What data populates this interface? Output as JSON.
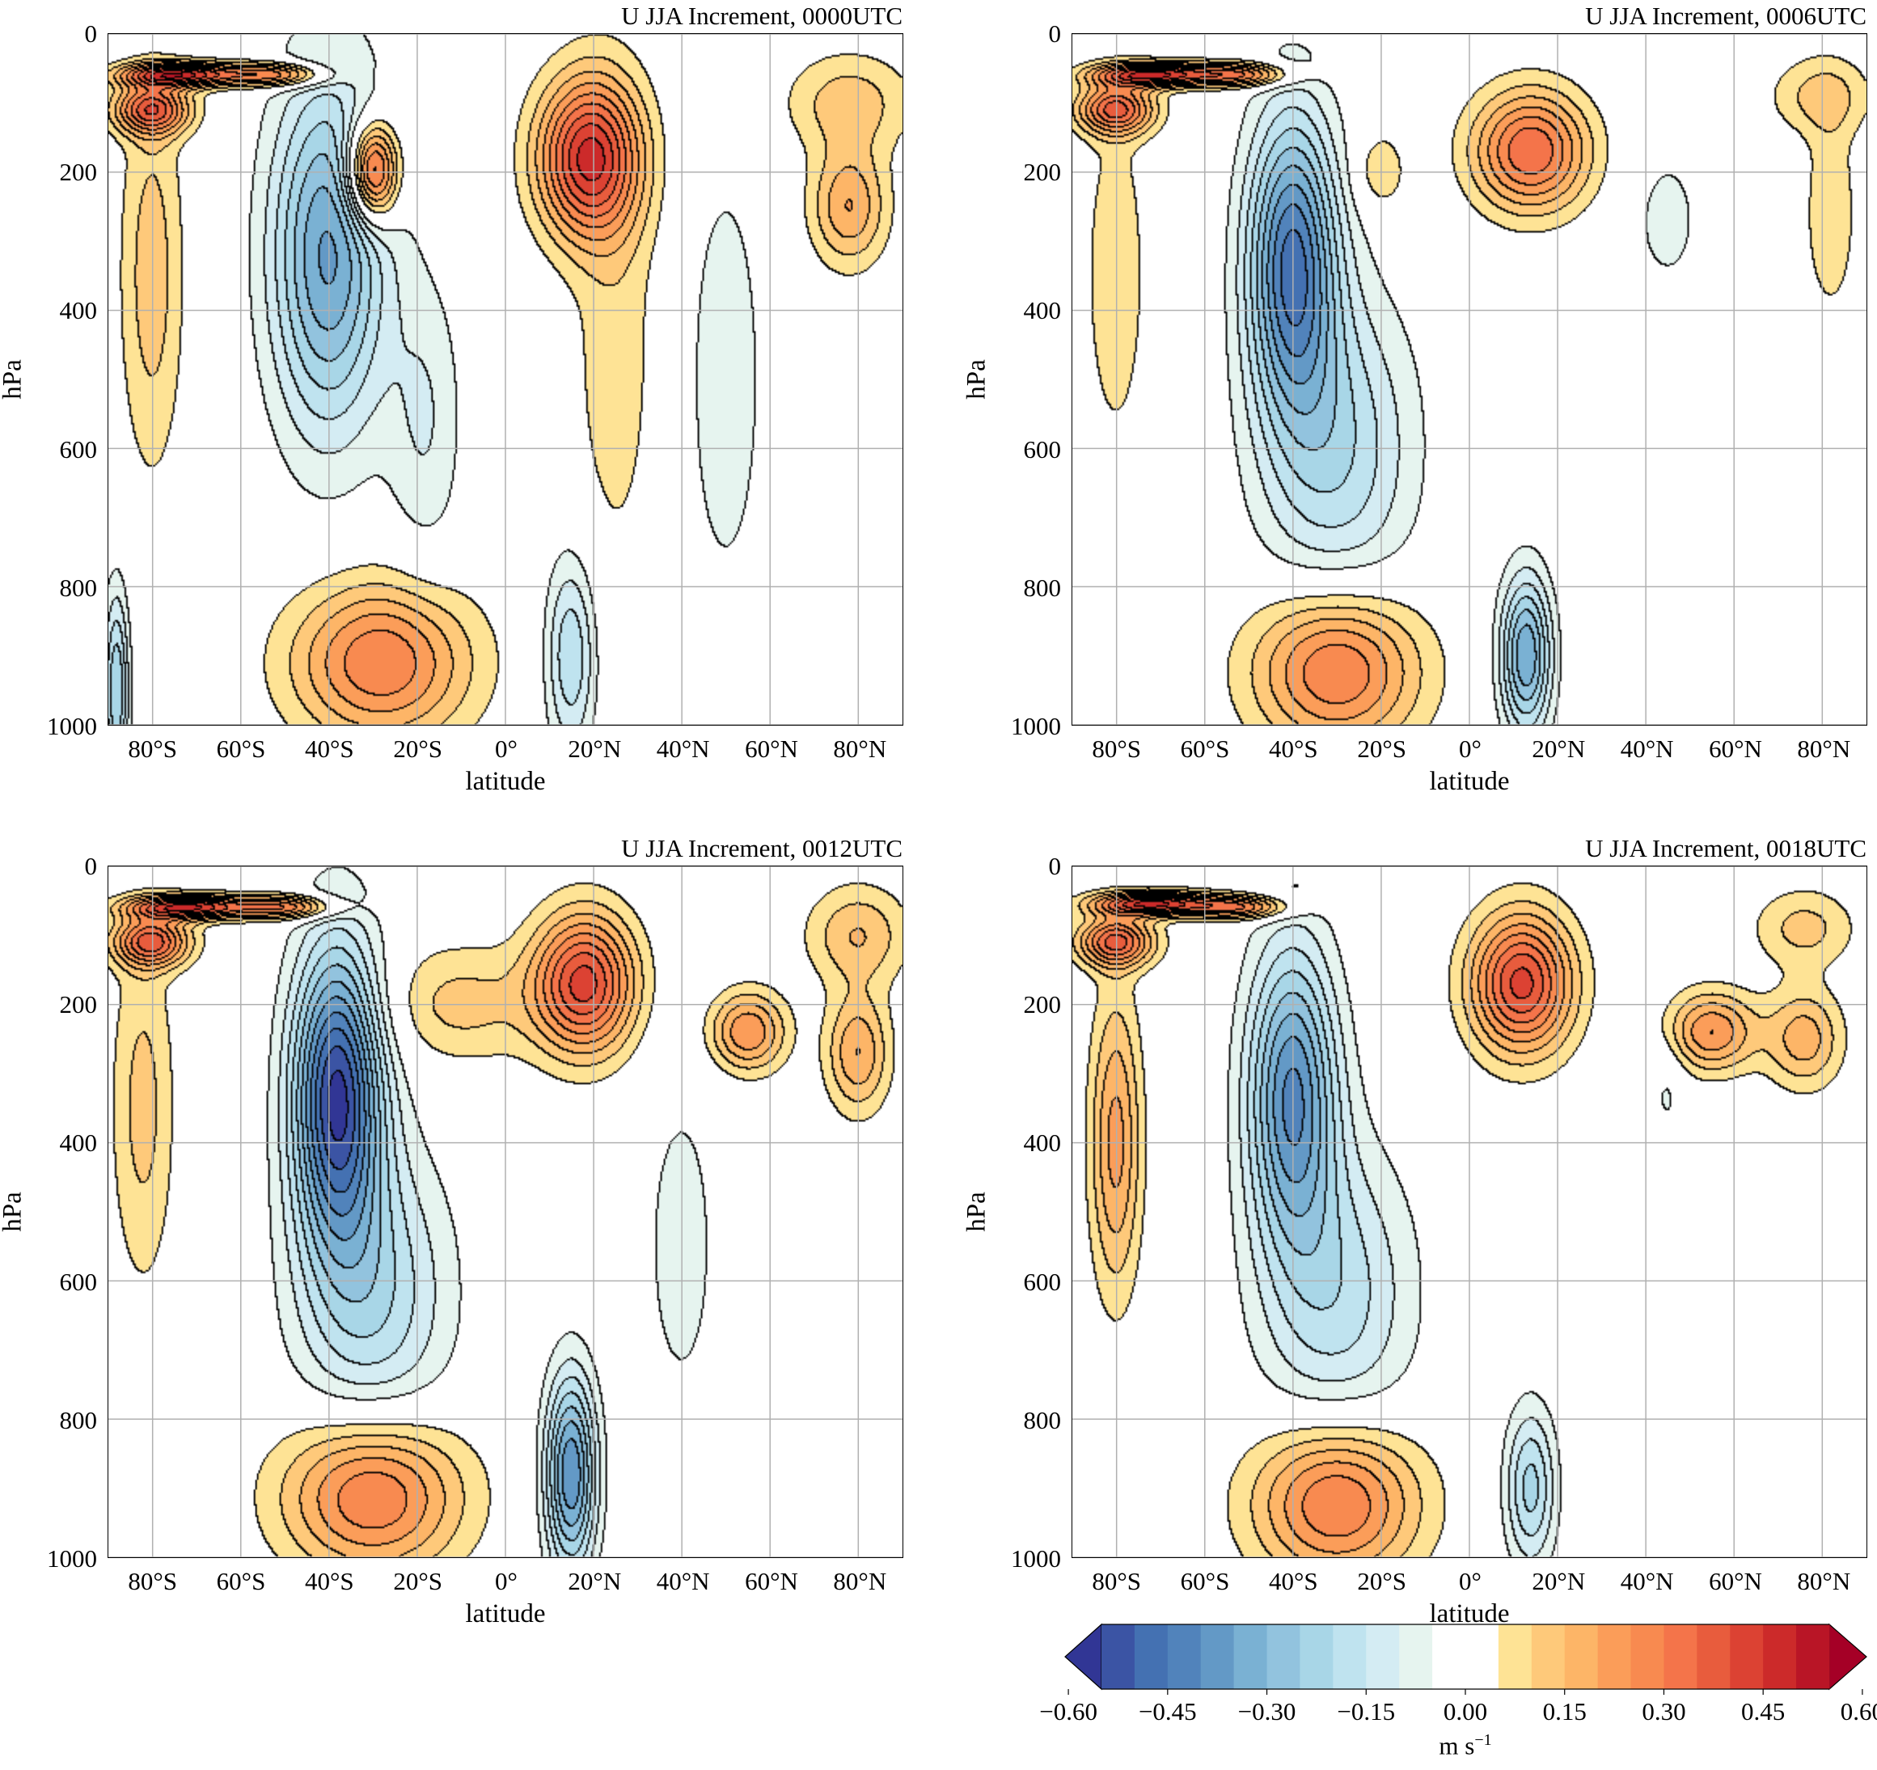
{
  "colorbar": {
    "label": "m s",
    "label_exponent": "−1",
    "levels_min": -0.6,
    "levels_max": 0.6,
    "level_step": 0.05,
    "extend": "both",
    "colormap": "RdYlBu_r",
    "colors": [
      "#313695",
      "#3b54a4",
      "#4471b2",
      "#5183bb",
      "#6399c6",
      "#7ab1d3",
      "#92c3de",
      "#a8d6e7",
      "#bfe3ef",
      "#d4ecf3",
      "#e6f4ef",
      "#ffffff",
      "#ffffff",
      "#fee395",
      "#fec97a",
      "#fdb567",
      "#fb9d59",
      "#f88a50",
      "#f4744a",
      "#e85c3d",
      "#dc4233",
      "#cc2a2a",
      "#b91526",
      "#a50026"
    ],
    "ticks": [
      -0.6,
      -0.45,
      -0.3,
      -0.15,
      0.0,
      0.15,
      0.3,
      0.45,
      0.6
    ],
    "tick_labels": [
      "−0.60",
      "−0.45",
      "−0.30",
      "−0.15",
      "0.00",
      "0.15",
      "0.30",
      "0.45",
      "0.60"
    ]
  },
  "chart_data": [
    {
      "type": "contour",
      "title": "U JJA Increment, 0000UTC",
      "xlabel": "latitude",
      "ylabel": "hPa",
      "xlim": [
        -90,
        90
      ],
      "ylim": [
        1000,
        0
      ],
      "y_inverted": true,
      "grid": true,
      "xticks": [
        -80,
        -60,
        -40,
        -20,
        0,
        20,
        40,
        60,
        80
      ],
      "xtick_labels": [
        "80°S",
        "60°S",
        "40°S",
        "20°S",
        "0°",
        "20°N",
        "40°N",
        "60°N",
        "80°N"
      ],
      "yticks": [
        0,
        200,
        400,
        600,
        800,
        1000
      ],
      "ytick_labels": [
        "0",
        "200",
        "400",
        "600",
        "800",
        "1000"
      ],
      "field_extrema": [
        {
          "lat": -80,
          "p": 110,
          "u": 0.35,
          "dlat": 6,
          "dp": 25
        },
        {
          "lat": -74,
          "p": 60,
          "u": 0.45,
          "dlat": 9,
          "dp": 12
        },
        {
          "lat": -52,
          "p": 60,
          "u": 0.3,
          "dlat": 8,
          "dp": 12
        },
        {
          "lat": -80,
          "p": 350,
          "u": 0.13,
          "dlat": 5,
          "dp": 200
        },
        {
          "lat": -40,
          "p": 320,
          "u": -0.36,
          "dlat": 9,
          "dp": 180
        },
        {
          "lat": -30,
          "p": 200,
          "u": 0.45,
          "dlat": 4,
          "dp": 50
        },
        {
          "lat": -18,
          "p": 560,
          "u": -0.1,
          "dlat": 6,
          "dp": 150
        },
        {
          "lat": -28,
          "p": 910,
          "u": 0.3,
          "dlat": 14,
          "dp": 80
        },
        {
          "lat": 15,
          "p": 900,
          "u": -0.2,
          "dlat": 4,
          "dp": 100
        },
        {
          "lat": 19,
          "p": 180,
          "u": 0.45,
          "dlat": 8,
          "dp": 80
        },
        {
          "lat": 25,
          "p": 450,
          "u": 0.08,
          "dlat": 7,
          "dp": 250
        },
        {
          "lat": 50,
          "p": 500,
          "u": -0.08,
          "dlat": 7,
          "dp": 250
        },
        {
          "lat": 78,
          "p": 250,
          "u": 0.2,
          "dlat": 6,
          "dp": 60
        },
        {
          "lat": 78,
          "p": 100,
          "u": 0.13,
          "dlat": 10,
          "dp": 50
        },
        {
          "lat": -88,
          "p": 950,
          "u": -0.25,
          "dlat": 2,
          "dp": 100
        }
      ],
      "contour_labels": [
        "0.05",
        "-0.05",
        "0.05",
        "-0.05"
      ]
    },
    {
      "type": "contour",
      "title": "U JJA Increment, 0006UTC",
      "xlabel": "latitude",
      "ylabel": "hPa",
      "xlim": [
        -90,
        90
      ],
      "ylim": [
        1000,
        0
      ],
      "y_inverted": true,
      "grid": true,
      "xticks": [
        -80,
        -60,
        -40,
        -20,
        0,
        20,
        40,
        60,
        80
      ],
      "xtick_labels": [
        "80°S",
        "60°S",
        "40°S",
        "20°S",
        "0°",
        "20°N",
        "40°N",
        "60°N",
        "80°N"
      ],
      "yticks": [
        0,
        200,
        400,
        600,
        800,
        1000
      ],
      "ytick_labels": [
        "0",
        "200",
        "400",
        "600",
        "800",
        "1000"
      ],
      "field_extrema": [
        {
          "lat": -80,
          "p": 110,
          "u": 0.35,
          "dlat": 6,
          "dp": 25
        },
        {
          "lat": -72,
          "p": 60,
          "u": 0.45,
          "dlat": 9,
          "dp": 12
        },
        {
          "lat": -52,
          "p": 60,
          "u": 0.3,
          "dlat": 8,
          "dp": 12
        },
        {
          "lat": -80,
          "p": 350,
          "u": 0.09,
          "dlat": 5,
          "dp": 180
        },
        {
          "lat": -40,
          "p": 330,
          "u": -0.45,
          "dlat": 7,
          "dp": 150
        },
        {
          "lat": -30,
          "p": 600,
          "u": -0.2,
          "dlat": 12,
          "dp": 160
        },
        {
          "lat": -30,
          "p": 920,
          "u": 0.32,
          "dlat": 13,
          "dp": 80
        },
        {
          "lat": 13,
          "p": 900,
          "u": -0.35,
          "dlat": 4,
          "dp": 80
        },
        {
          "lat": 14,
          "p": 170,
          "u": 0.35,
          "dlat": 9,
          "dp": 60
        },
        {
          "lat": -20,
          "p": 200,
          "u": 0.1,
          "dlat": 4,
          "dp": 40
        },
        {
          "lat": 80,
          "p": 90,
          "u": 0.12,
          "dlat": 8,
          "dp": 40
        },
        {
          "lat": 82,
          "p": 260,
          "u": 0.1,
          "dlat": 4,
          "dp": 100
        },
        {
          "lat": 45,
          "p": 270,
          "u": -0.07,
          "dlat": 6,
          "dp": 80
        }
      ],
      "contour_labels": [
        "0.05",
        "-0.05",
        "0.05"
      ]
    },
    {
      "type": "contour",
      "title": "U JJA Increment, 0012UTC",
      "xlabel": "latitude",
      "ylabel": "hPa",
      "xlim": [
        -90,
        90
      ],
      "ylim": [
        1000,
        0
      ],
      "y_inverted": true,
      "grid": true,
      "xticks": [
        -80,
        -60,
        -40,
        -20,
        0,
        20,
        40,
        60,
        80
      ],
      "xtick_labels": [
        "80°S",
        "60°S",
        "40°S",
        "20°S",
        "0°",
        "20°N",
        "40°N",
        "60°N",
        "80°N"
      ],
      "yticks": [
        0,
        200,
        400,
        600,
        800,
        1000
      ],
      "ytick_labels": [
        "0",
        "200",
        "400",
        "600",
        "800",
        "1000"
      ],
      "field_extrema": [
        {
          "lat": -80,
          "p": 110,
          "u": 0.35,
          "dlat": 6,
          "dp": 25
        },
        {
          "lat": -72,
          "p": 60,
          "u": 0.45,
          "dlat": 9,
          "dp": 12
        },
        {
          "lat": -50,
          "p": 60,
          "u": 0.3,
          "dlat": 8,
          "dp": 12
        },
        {
          "lat": -82,
          "p": 350,
          "u": 0.12,
          "dlat": 5,
          "dp": 180
        },
        {
          "lat": -38,
          "p": 330,
          "u": -0.55,
          "dlat": 7,
          "dp": 150
        },
        {
          "lat": -30,
          "p": 620,
          "u": -0.2,
          "dlat": 12,
          "dp": 150
        },
        {
          "lat": -30,
          "p": 910,
          "u": 0.32,
          "dlat": 14,
          "dp": 80
        },
        {
          "lat": 15,
          "p": 880,
          "u": -0.4,
          "dlat": 4,
          "dp": 100
        },
        {
          "lat": 18,
          "p": 170,
          "u": 0.42,
          "dlat": 8,
          "dp": 70
        },
        {
          "lat": -10,
          "p": 200,
          "u": 0.12,
          "dlat": 12,
          "dp": 60
        },
        {
          "lat": 55,
          "p": 240,
          "u": 0.25,
          "dlat": 6,
          "dp": 40
        },
        {
          "lat": 80,
          "p": 270,
          "u": 0.2,
          "dlat": 5,
          "dp": 60
        },
        {
          "lat": 80,
          "p": 100,
          "u": 0.15,
          "dlat": 8,
          "dp": 50
        },
        {
          "lat": 40,
          "p": 550,
          "u": -0.07,
          "dlat": 7,
          "dp": 200
        }
      ],
      "contour_labels": [
        "0.05",
        "-0.05",
        "0.05",
        "-0.05",
        "0.05"
      ]
    },
    {
      "type": "contour",
      "title": "U JJA Increment, 0018UTC",
      "xlabel": "latitude",
      "ylabel": "hPa",
      "xlim": [
        -90,
        90
      ],
      "ylim": [
        1000,
        0
      ],
      "y_inverted": true,
      "grid": true,
      "xticks": [
        -80,
        -60,
        -40,
        -20,
        0,
        20,
        40,
        60,
        80
      ],
      "xtick_labels": [
        "80°S",
        "60°S",
        "40°S",
        "20°S",
        "0°",
        "20°N",
        "40°N",
        "60°N",
        "80°N"
      ],
      "yticks": [
        0,
        200,
        400,
        600,
        800,
        1000
      ],
      "ytick_labels": [
        "0",
        "200",
        "400",
        "600",
        "800",
        "1000"
      ],
      "field_extrema": [
        {
          "lat": -80,
          "p": 110,
          "u": 0.35,
          "dlat": 6,
          "dp": 25
        },
        {
          "lat": -72,
          "p": 55,
          "u": 0.45,
          "dlat": 9,
          "dp": 12
        },
        {
          "lat": -52,
          "p": 60,
          "u": 0.3,
          "dlat": 8,
          "dp": 12
        },
        {
          "lat": -80,
          "p": 400,
          "u": 0.22,
          "dlat": 4,
          "dp": 150
        },
        {
          "lat": -40,
          "p": 330,
          "u": -0.4,
          "dlat": 7,
          "dp": 150
        },
        {
          "lat": -30,
          "p": 620,
          "u": -0.18,
          "dlat": 12,
          "dp": 150
        },
        {
          "lat": -30,
          "p": 920,
          "u": 0.32,
          "dlat": 13,
          "dp": 80
        },
        {
          "lat": 14,
          "p": 900,
          "u": -0.22,
          "dlat": 4,
          "dp": 80
        },
        {
          "lat": 12,
          "p": 170,
          "u": 0.42,
          "dlat": 8,
          "dp": 70
        },
        {
          "lat": 55,
          "p": 240,
          "u": 0.25,
          "dlat": 7,
          "dp": 40
        },
        {
          "lat": 76,
          "p": 250,
          "u": 0.18,
          "dlat": 6,
          "dp": 50
        },
        {
          "lat": 76,
          "p": 90,
          "u": 0.12,
          "dlat": 8,
          "dp": 40
        },
        {
          "lat": 45,
          "p": 320,
          "u": -0.06,
          "dlat": 3,
          "dp": 60
        }
      ],
      "contour_labels": [
        "0.05",
        "-0.05",
        "0.05",
        "-0.05"
      ]
    }
  ]
}
